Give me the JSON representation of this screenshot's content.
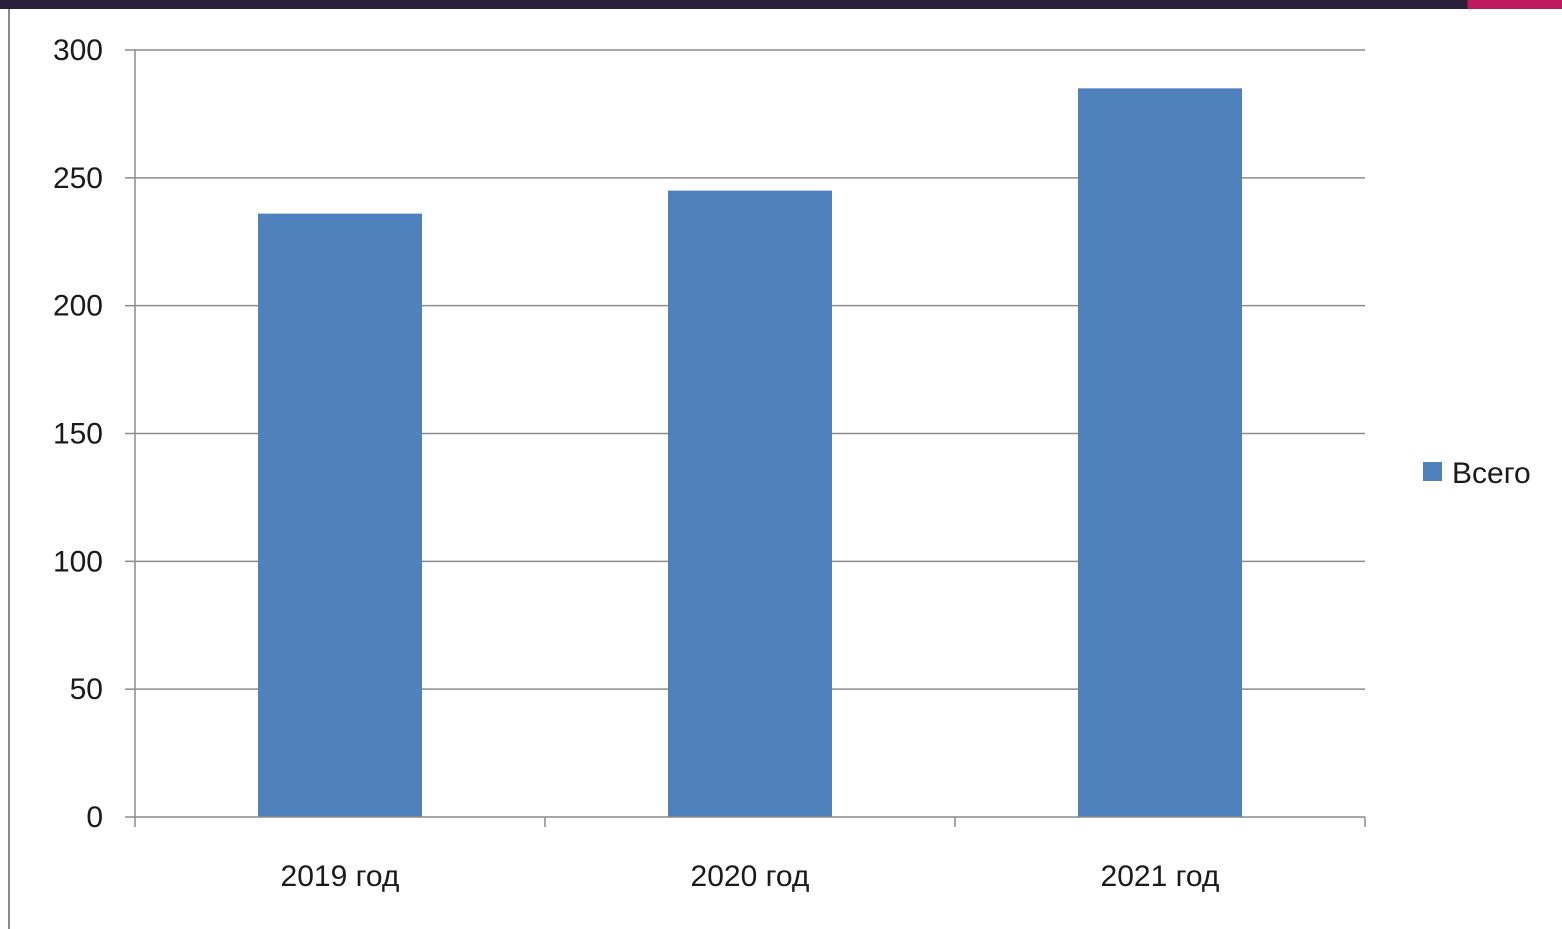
{
  "colors": {
    "bar": "#4f81bd",
    "gridline": "#8c8c8c",
    "axis": "#8c8c8c",
    "text": "#1a1a1a",
    "top_bar_left": "#2b1f3a",
    "top_bar_right": "#c0195f"
  },
  "chart_data": {
    "type": "bar",
    "categories": [
      "2019 год",
      "2020 год",
      "2021 год"
    ],
    "series": [
      {
        "name": "Всего",
        "values": [
          236,
          245,
          285
        ]
      }
    ],
    "title": "",
    "xlabel": "",
    "ylabel": "",
    "ylim": [
      0,
      300
    ],
    "yticks": [
      0,
      50,
      100,
      150,
      200,
      250,
      300
    ],
    "grid": true,
    "legend_position": "right"
  }
}
